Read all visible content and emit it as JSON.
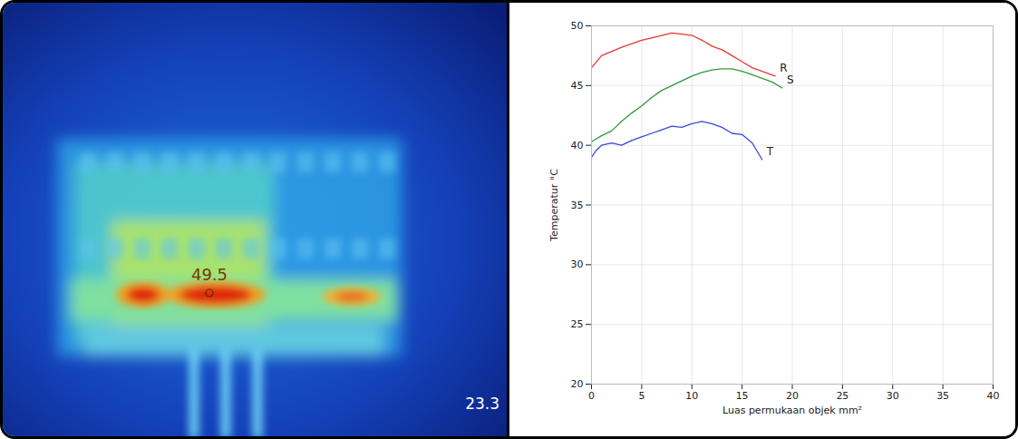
{
  "thermal_image": {
    "spot_label": "49.5",
    "corner_label": "23.3"
  },
  "chart_data": {
    "type": "line",
    "x_label": "Luas permukaan objek mm²",
    "y_label": "Temperatur °C",
    "xlim": [
      0,
      40
    ],
    "xticks": [
      0,
      5,
      10,
      15,
      20,
      25,
      30,
      35,
      40
    ],
    "ylim": [
      20,
      50
    ],
    "yticks": [
      20,
      25,
      30,
      35,
      40,
      45,
      50
    ],
    "grid": true,
    "series": [
      {
        "name": "R",
        "color": "#e8382f",
        "x": [
          0,
          1,
          3,
          5,
          7,
          8,
          9,
          10,
          11,
          12,
          13,
          14,
          15,
          16,
          17,
          18.3
        ],
        "values": [
          46.5,
          47.5,
          48.2,
          48.8,
          49.2,
          49.4,
          49.3,
          49.2,
          48.8,
          48.3,
          48.0,
          47.5,
          47.0,
          46.5,
          46.2,
          45.8
        ]
      },
      {
        "name": "S",
        "color": "#2e9a3a",
        "x": [
          0,
          1,
          2,
          3,
          4,
          5,
          6,
          7,
          8,
          9,
          10,
          11,
          12,
          13,
          14,
          15,
          16,
          17,
          18,
          19
        ],
        "values": [
          40.3,
          40.8,
          41.2,
          42.0,
          42.7,
          43.3,
          44.0,
          44.6,
          45.0,
          45.4,
          45.8,
          46.1,
          46.3,
          46.4,
          46.4,
          46.2,
          45.9,
          45.6,
          45.3,
          44.8
        ]
      },
      {
        "name": "T",
        "color": "#3a48d8",
        "x": [
          0,
          0.5,
          1,
          2,
          3,
          4,
          5,
          6,
          7,
          8,
          9,
          10,
          11,
          12,
          13,
          14,
          15,
          16,
          17
        ],
        "values": [
          39.0,
          39.6,
          40.0,
          40.2,
          40.0,
          40.4,
          40.7,
          41.0,
          41.3,
          41.6,
          41.5,
          41.8,
          42.0,
          41.8,
          41.5,
          41.0,
          40.9,
          40.2,
          38.8
        ]
      }
    ]
  }
}
